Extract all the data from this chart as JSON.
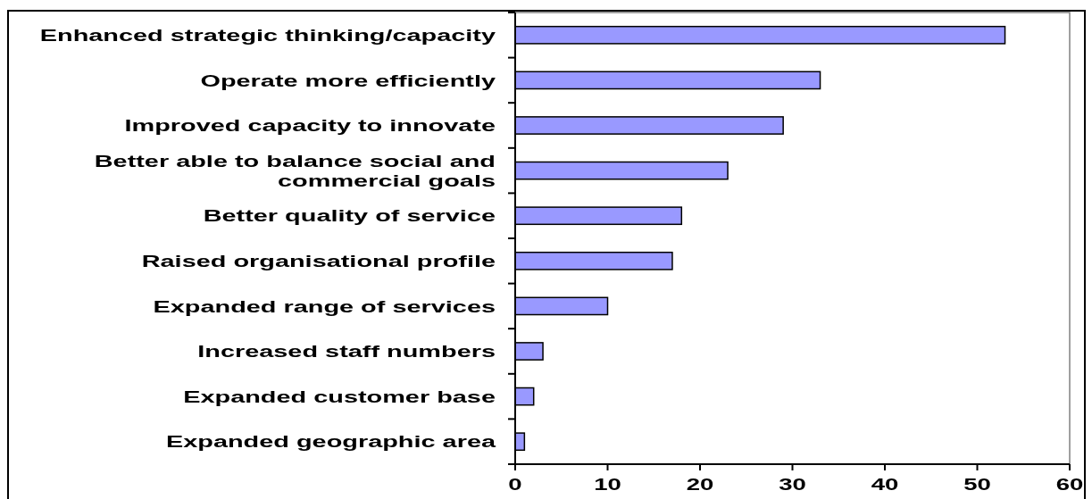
{
  "chart_data": {
    "type": "bar",
    "orientation": "horizontal",
    "categories": [
      "Enhanced strategic thinking/capacity",
      "Operate more efficiently",
      "Improved capacity to innovate",
      "Better able to balance social and commercial goals",
      "Better quality of service",
      "Raised organisational profile",
      "Expanded range of services",
      "Increased staff numbers",
      "Expanded customer base",
      "Expanded geographic area"
    ],
    "values": [
      53,
      33,
      29,
      23,
      18,
      17,
      10,
      3,
      2,
      1
    ],
    "color": "#9999ff",
    "xlim": [
      0,
      60
    ],
    "xticks": [
      0,
      10,
      20,
      30,
      40,
      50,
      60
    ],
    "grid": false
  }
}
